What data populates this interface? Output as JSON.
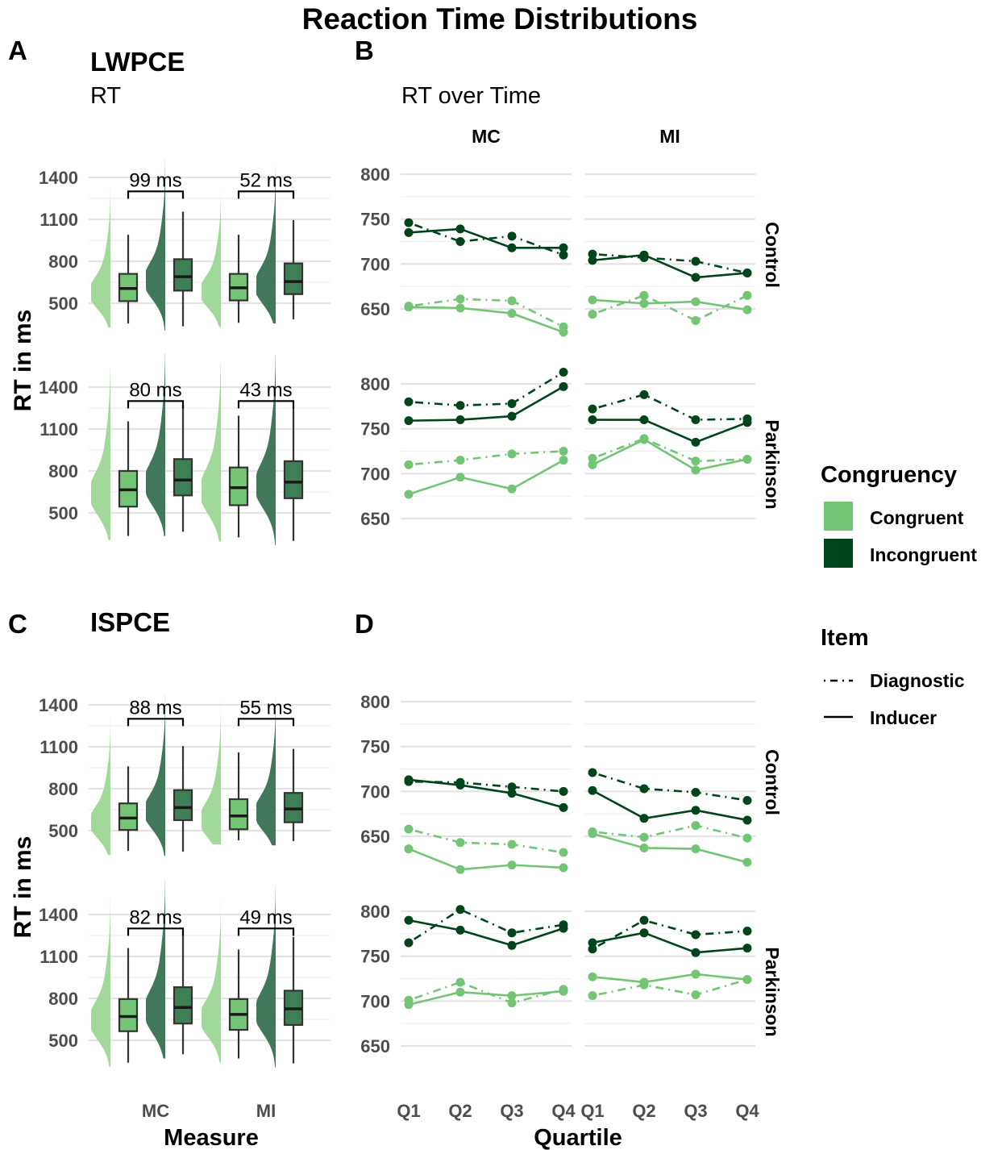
{
  "title": "Reaction Time Distributions",
  "colors": {
    "congruent": "#74c476",
    "incongruent": "#00441b",
    "cong_violin": "#a1d99b",
    "inc_violin": "#41775a"
  },
  "panels": {
    "A": {
      "letter": "A",
      "title": "LWPCE",
      "subtitle": "RT"
    },
    "B": {
      "letter": "B",
      "title": "",
      "subtitle": "RT over Time"
    },
    "C": {
      "letter": "C",
      "title": "ISPCE",
      "subtitle": ""
    },
    "D": {
      "letter": "D",
      "title": "",
      "subtitle": ""
    }
  },
  "axes": {
    "rt_ylabel": "RT in ms",
    "measure_xlabel": "Measure",
    "quartile_xlabel": "Quartile",
    "measure_ticks": [
      "MC",
      "MI"
    ],
    "quartile_ticks": [
      "Q1",
      "Q2",
      "Q3",
      "Q4"
    ],
    "rt_yticks": [
      500,
      800,
      1100,
      1400
    ],
    "time_yticks": [
      650,
      700,
      750,
      800
    ]
  },
  "facets": {
    "columns": [
      "MC",
      "MI"
    ],
    "rows": [
      "Control",
      "Parkinson"
    ]
  },
  "legend": {
    "congruency_title": "Congruency",
    "congruency_items": [
      "Congruent",
      "Incongruent"
    ],
    "item_title": "Item",
    "item_items": [
      "Diagnostic",
      "Inducer"
    ]
  },
  "chart_data": [
    {
      "type": "box",
      "panel": "A",
      "ylim": [
        350,
        1560
      ],
      "groups": [
        {
          "row": "Control",
          "measure": "MC",
          "diff_label": "99  ms",
          "congruent": {
            "min": 355,
            "q1": 515,
            "median": 605,
            "q3": 710,
            "max": 990
          },
          "incongruent": {
            "min": 335,
            "q1": 590,
            "median": 690,
            "q3": 815,
            "max": 1155
          }
        },
        {
          "row": "Control",
          "measure": "MI",
          "diff_label": "52  ms",
          "congruent": {
            "min": 360,
            "q1": 520,
            "median": 610,
            "q3": 710,
            "max": 990
          },
          "incongruent": {
            "min": 385,
            "q1": 565,
            "median": 655,
            "q3": 785,
            "max": 1095
          }
        },
        {
          "row": "Parkinson",
          "measure": "MC",
          "diff_label": "80  ms",
          "congruent": {
            "min": 335,
            "q1": 545,
            "median": 665,
            "q3": 800,
            "max": 1155
          },
          "incongruent": {
            "min": 365,
            "q1": 625,
            "median": 735,
            "q3": 885,
            "max": 1265
          }
        },
        {
          "row": "Parkinson",
          "measure": "MI",
          "diff_label": "43  ms",
          "congruent": {
            "min": 325,
            "q1": 555,
            "median": 680,
            "q3": 825,
            "max": 1195
          },
          "incongruent": {
            "min": 300,
            "q1": 605,
            "median": 720,
            "q3": 870,
            "max": 1250
          }
        }
      ]
    },
    {
      "type": "line",
      "panel": "B",
      "x": [
        "Q1",
        "Q2",
        "Q3",
        "Q4"
      ],
      "series": [
        {
          "row": "Control",
          "col": "MC",
          "congruency": "Congruent",
          "item": "Diagnostic",
          "values": [
            653,
            661,
            659,
            630
          ]
        },
        {
          "row": "Control",
          "col": "MC",
          "congruency": "Congruent",
          "item": "Inducer",
          "values": [
            652,
            651,
            645,
            624
          ]
        },
        {
          "row": "Control",
          "col": "MC",
          "congruency": "Incongruent",
          "item": "Diagnostic",
          "values": [
            746,
            725,
            731,
            710
          ]
        },
        {
          "row": "Control",
          "col": "MC",
          "congruency": "Incongruent",
          "item": "Inducer",
          "values": [
            735,
            739,
            718,
            718
          ]
        },
        {
          "row": "Control",
          "col": "MI",
          "congruency": "Congruent",
          "item": "Diagnostic",
          "values": [
            644,
            665,
            637,
            665
          ]
        },
        {
          "row": "Control",
          "col": "MI",
          "congruency": "Congruent",
          "item": "Inducer",
          "values": [
            660,
            656,
            658,
            649
          ]
        },
        {
          "row": "Control",
          "col": "MI",
          "congruency": "Incongruent",
          "item": "Diagnostic",
          "values": [
            711,
            707,
            703,
            690
          ]
        },
        {
          "row": "Control",
          "col": "MI",
          "congruency": "Incongruent",
          "item": "Inducer",
          "values": [
            704,
            710,
            685,
            690
          ]
        },
        {
          "row": "Parkinson",
          "col": "MC",
          "congruency": "Congruent",
          "item": "Diagnostic",
          "values": [
            710,
            715,
            722,
            725
          ]
        },
        {
          "row": "Parkinson",
          "col": "MC",
          "congruency": "Congruent",
          "item": "Inducer",
          "values": [
            677,
            696,
            683,
            715
          ]
        },
        {
          "row": "Parkinson",
          "col": "MC",
          "congruency": "Incongruent",
          "item": "Diagnostic",
          "values": [
            780,
            776,
            778,
            813
          ]
        },
        {
          "row": "Parkinson",
          "col": "MC",
          "congruency": "Incongruent",
          "item": "Inducer",
          "values": [
            759,
            760,
            764,
            797
          ]
        },
        {
          "row": "Parkinson",
          "col": "MI",
          "congruency": "Congruent",
          "item": "Diagnostic",
          "values": [
            717,
            739,
            714,
            716
          ]
        },
        {
          "row": "Parkinson",
          "col": "MI",
          "congruency": "Congruent",
          "item": "Inducer",
          "values": [
            710,
            738,
            704,
            716
          ]
        },
        {
          "row": "Parkinson",
          "col": "MI",
          "congruency": "Incongruent",
          "item": "Diagnostic",
          "values": [
            772,
            788,
            760,
            761
          ]
        },
        {
          "row": "Parkinson",
          "col": "MI",
          "congruency": "Incongruent",
          "item": "Inducer",
          "values": [
            760,
            760,
            735,
            757
          ]
        }
      ]
    },
    {
      "type": "box",
      "panel": "C",
      "ylim": [
        350,
        1560
      ],
      "groups": [
        {
          "row": "Control",
          "measure": "MC",
          "diff_label": "88  ms",
          "congruent": {
            "min": 355,
            "q1": 505,
            "median": 590,
            "q3": 695,
            "max": 960
          },
          "incongruent": {
            "min": 350,
            "q1": 575,
            "median": 665,
            "q3": 790,
            "max": 1105
          }
        },
        {
          "row": "Control",
          "measure": "MI",
          "diff_label": "55  ms",
          "congruent": {
            "min": 430,
            "q1": 510,
            "median": 605,
            "q3": 725,
            "max": 1060
          },
          "incongruent": {
            "min": 425,
            "q1": 560,
            "median": 655,
            "q3": 770,
            "max": 1085
          }
        },
        {
          "row": "Parkinson",
          "measure": "MC",
          "diff_label": "82  ms",
          "congruent": {
            "min": 340,
            "q1": 565,
            "median": 670,
            "q3": 795,
            "max": 1160
          },
          "incongruent": {
            "min": 400,
            "q1": 620,
            "median": 735,
            "q3": 880,
            "max": 1265
          }
        },
        {
          "row": "Parkinson",
          "measure": "MI",
          "diff_label": "49  ms",
          "congruent": {
            "min": 370,
            "q1": 575,
            "median": 685,
            "q3": 795,
            "max": 1150
          },
          "incongruent": {
            "min": 335,
            "q1": 610,
            "median": 725,
            "q3": 855,
            "max": 1240
          }
        }
      ]
    },
    {
      "type": "line",
      "panel": "D",
      "x": [
        "Q1",
        "Q2",
        "Q3",
        "Q4"
      ],
      "series": [
        {
          "row": "Control",
          "col": "MC",
          "congruency": "Congruent",
          "item": "Diagnostic",
          "values": [
            658,
            643,
            641,
            632
          ]
        },
        {
          "row": "Control",
          "col": "MC",
          "congruency": "Congruent",
          "item": "Inducer",
          "values": [
            636,
            613,
            618,
            615
          ]
        },
        {
          "row": "Control",
          "col": "MC",
          "congruency": "Incongruent",
          "item": "Diagnostic",
          "values": [
            711,
            710,
            705,
            700
          ]
        },
        {
          "row": "Control",
          "col": "MC",
          "congruency": "Incongruent",
          "item": "Inducer",
          "values": [
            713,
            707,
            698,
            682
          ]
        },
        {
          "row": "Control",
          "col": "MI",
          "congruency": "Congruent",
          "item": "Diagnostic",
          "values": [
            655,
            649,
            662,
            648
          ]
        },
        {
          "row": "Control",
          "col": "MI",
          "congruency": "Congruent",
          "item": "Inducer",
          "values": [
            653,
            637,
            636,
            621
          ]
        },
        {
          "row": "Control",
          "col": "MI",
          "congruency": "Incongruent",
          "item": "Diagnostic",
          "values": [
            721,
            703,
            699,
            690
          ]
        },
        {
          "row": "Control",
          "col": "MI",
          "congruency": "Incongruent",
          "item": "Inducer",
          "values": [
            701,
            670,
            679,
            668
          ]
        },
        {
          "row": "Parkinson",
          "col": "MC",
          "congruency": "Congruent",
          "item": "Diagnostic",
          "values": [
            701,
            721,
            698,
            713
          ]
        },
        {
          "row": "Parkinson",
          "col": "MC",
          "congruency": "Congruent",
          "item": "Inducer",
          "values": [
            696,
            710,
            706,
            711
          ]
        },
        {
          "row": "Parkinson",
          "col": "MC",
          "congruency": "Incongruent",
          "item": "Diagnostic",
          "values": [
            765,
            802,
            776,
            785
          ]
        },
        {
          "row": "Parkinson",
          "col": "MC",
          "congruency": "Incongruent",
          "item": "Inducer",
          "values": [
            790,
            779,
            762,
            781
          ]
        },
        {
          "row": "Parkinson",
          "col": "MI",
          "congruency": "Congruent",
          "item": "Diagnostic",
          "values": [
            706,
            718,
            707,
            724
          ]
        },
        {
          "row": "Parkinson",
          "col": "MI",
          "congruency": "Congruent",
          "item": "Inducer",
          "values": [
            727,
            721,
            730,
            724
          ]
        },
        {
          "row": "Parkinson",
          "col": "MI",
          "congruency": "Incongruent",
          "item": "Diagnostic",
          "values": [
            758,
            790,
            774,
            778
          ]
        },
        {
          "row": "Parkinson",
          "col": "MI",
          "congruency": "Incongruent",
          "item": "Inducer",
          "values": [
            765,
            776,
            754,
            759
          ]
        }
      ]
    }
  ]
}
